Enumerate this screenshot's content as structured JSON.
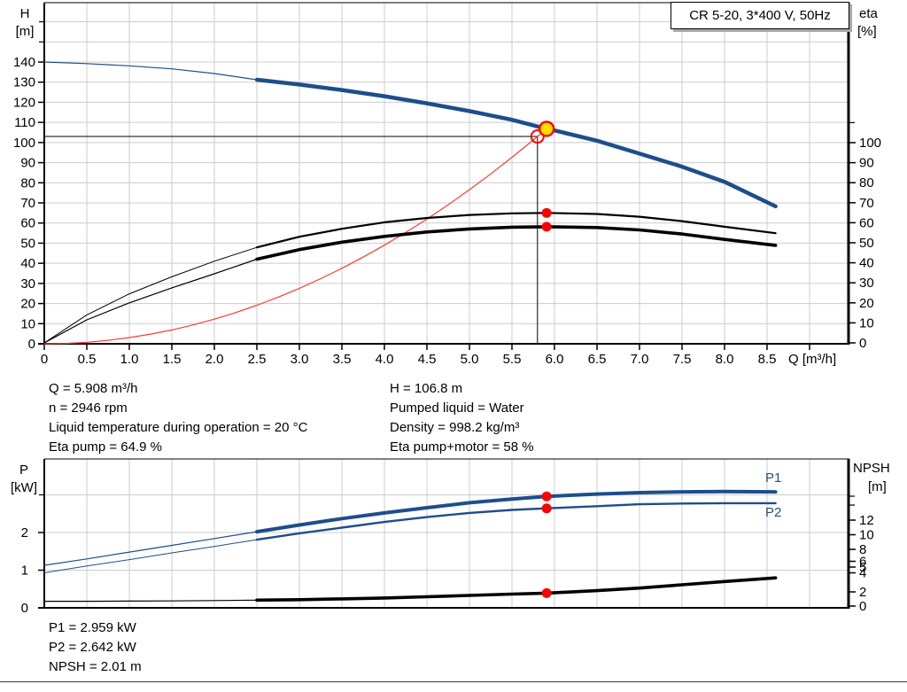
{
  "title_box": {
    "label": "CR 5-20, 3*400 V, 50Hz"
  },
  "info": {
    "left": [
      "Q = 5.908 m³/h",
      "n = 2946 rpm",
      "Liquid temperature during operation = 20 °C",
      "Eta pump = 64.9 %"
    ],
    "right": [
      "H = 106.8 m",
      "Pumped liquid = Water",
      "Density = 998.2 kg/m³",
      "Eta pump+motor = 58 %"
    ]
  },
  "results": [
    "P1 = 2.959 kW",
    "P2 = 2.642 kW",
    "NPSH = 2.01 m"
  ],
  "colors": {
    "curve_blue": "#1d4e8b",
    "curve_black": "#000000",
    "system_red": "#ff3b30",
    "marker_red": "#ff0000",
    "marker_yellow": "#ffdf00",
    "grid": "#cccccc"
  },
  "chart_data": [
    {
      "type": "line",
      "title": "CR 5-20, 3*400 V, 50Hz",
      "x_axis": {
        "label": "Q [m³/h]",
        "min": 0,
        "max": 9.47,
        "tick_step": 0.5,
        "tick_labels": [
          "0",
          "0.5",
          "1.0",
          "1.5",
          "2.0",
          "2.5",
          "3.0",
          "3.5",
          "4.0",
          "4.5",
          "5.0",
          "5.5",
          "6.0",
          "6.5",
          "7.0",
          "7.5",
          "8.0",
          "8.5"
        ]
      },
      "y_left": {
        "label_line1": "H",
        "label_line2": "[m]",
        "min": 0,
        "max": 140,
        "tick_labels": [
          "0",
          "10",
          "20",
          "30",
          "40",
          "50",
          "60",
          "70",
          "80",
          "90",
          "100",
          "110",
          "120",
          "130",
          "140"
        ]
      },
      "y_right": {
        "label_line1": "eta",
        "label_line2": "[%]",
        "min": 0,
        "max": 100,
        "tick_labels": [
          "0",
          "10",
          "20",
          "30",
          "40",
          "50",
          "60",
          "70",
          "80",
          "90",
          "100"
        ]
      },
      "series": [
        {
          "id": "system-curve",
          "name": "System curve",
          "axis": "H",
          "color": "#ff3b30",
          "split_q": 99,
          "points": [
            [
              0,
              0
            ],
            [
              0.25,
              0.19
            ],
            [
              0.5,
              0.77
            ],
            [
              0.75,
              1.72
            ],
            [
              1,
              3.06
            ],
            [
              1.25,
              4.79
            ],
            [
              1.5,
              6.89
            ],
            [
              1.75,
              9.38
            ],
            [
              2,
              12.25
            ],
            [
              2.25,
              15.5
            ],
            [
              2.5,
              19.14
            ],
            [
              2.75,
              23.16
            ],
            [
              3,
              27.56
            ],
            [
              3.25,
              32.35
            ],
            [
              3.5,
              37.51
            ],
            [
              3.75,
              43.06
            ],
            [
              4,
              48.99
            ],
            [
              4.25,
              55.31
            ],
            [
              4.5,
              62.0
            ],
            [
              4.75,
              69.08
            ],
            [
              5,
              76.56
            ],
            [
              5.25,
              84.41
            ],
            [
              5.5,
              92.64
            ],
            [
              5.75,
              101.26
            ],
            [
              5.908,
              106.8
            ]
          ]
        },
        {
          "id": "eta-pump-motor-curve",
          "name": "Eta pump+motor",
          "axis": "eta",
          "color": "#000000",
          "split_q": 2.5,
          "points": [
            [
              0,
              0
            ],
            [
              0.5,
              11.5
            ],
            [
              1,
              20
            ],
            [
              1.5,
              27.5
            ],
            [
              2,
              34.5
            ],
            [
              2.5,
              41.8
            ],
            [
              3,
              46.6
            ],
            [
              3.5,
              50.3
            ],
            [
              4,
              53.2
            ],
            [
              4.5,
              55.4
            ],
            [
              5,
              56.9
            ],
            [
              5.5,
              57.8
            ],
            [
              5.908,
              58
            ],
            [
              6.5,
              57.6
            ],
            [
              7,
              56.4
            ],
            [
              7.5,
              54.4
            ],
            [
              8,
              51.7
            ],
            [
              8.6,
              48.7
            ]
          ]
        },
        {
          "id": "eta-pump-curve",
          "name": "Eta pump",
          "axis": "eta",
          "color": "#000000",
          "split_q": 2.5,
          "points": [
            [
              0,
              0
            ],
            [
              0.5,
              14
            ],
            [
              1,
              24.5
            ],
            [
              1.5,
              33
            ],
            [
              2,
              40.8
            ],
            [
              2.5,
              47.7
            ],
            [
              3,
              53
            ],
            [
              3.5,
              57
            ],
            [
              4,
              60.2
            ],
            [
              4.5,
              62.4
            ],
            [
              5,
              63.9
            ],
            [
              5.5,
              64.7
            ],
            [
              5.908,
              64.9
            ],
            [
              6.5,
              64.4
            ],
            [
              7,
              63
            ],
            [
              7.5,
              60.8
            ],
            [
              8,
              58
            ],
            [
              8.6,
              54.8
            ]
          ]
        },
        {
          "id": "head-curve",
          "name": "CR 5-20 head curve",
          "axis": "H",
          "color": "#1d4e8b",
          "split_q": 2.5,
          "points": [
            [
              0,
              140
            ],
            [
              0.5,
              139.2
            ],
            [
              1,
              138.1
            ],
            [
              1.5,
              136.6
            ],
            [
              2,
              134.3
            ],
            [
              2.5,
              131.2
            ],
            [
              3,
              128.8
            ],
            [
              3.5,
              126.1
            ],
            [
              4,
              123
            ],
            [
              4.5,
              119.5
            ],
            [
              5,
              115.6
            ],
            [
              5.5,
              111.3
            ],
            [
              5.908,
              106.8
            ],
            [
              6,
              106
            ],
            [
              6.5,
              100.9
            ],
            [
              7,
              94.5
            ],
            [
              7.5,
              88
            ],
            [
              8,
              80.5
            ],
            [
              8.6,
              68.3
            ]
          ]
        }
      ],
      "markers": {
        "duty_point": {
          "q": 5.8,
          "H": 103
        },
        "operating_point": {
          "q": 5.908,
          "H": 106.8
        },
        "eta_dots": [
          {
            "q": 5.908,
            "eta": 64.9
          },
          {
            "q": 5.908,
            "eta": 58
          }
        ]
      }
    },
    {
      "type": "line",
      "x_axis": {
        "label": "",
        "min": 0,
        "max": 9.47,
        "tick_step": 0.5,
        "tick_labels": []
      },
      "y_left": {
        "label_line1": "P",
        "label_line2": "[kW]",
        "min": 0,
        "max": 4,
        "tick_labels": [
          "0",
          "1",
          "2"
        ]
      },
      "y_right": {
        "label_line1": "NPSH",
        "label_line2": "[m]",
        "min": 0,
        "max": 15,
        "tick_labels": [
          "12",
          "10",
          "8",
          "6",
          "5",
          "4",
          "2",
          "0"
        ]
      },
      "legend": [
        "P1",
        "P2"
      ],
      "series": [
        {
          "id": "p1-curve",
          "name": "P1",
          "axis": "P",
          "color": "#1d4e8b",
          "split_q": 2.5,
          "points": [
            [
              0,
              1.13
            ],
            [
              0.5,
              1.3
            ],
            [
              1,
              1.48
            ],
            [
              1.5,
              1.66
            ],
            [
              2,
              1.84
            ],
            [
              2.5,
              2.02
            ],
            [
              3,
              2.2
            ],
            [
              3.5,
              2.37
            ],
            [
              4,
              2.52
            ],
            [
              4.5,
              2.66
            ],
            [
              5,
              2.79
            ],
            [
              5.5,
              2.89
            ],
            [
              5.908,
              2.959
            ],
            [
              6.5,
              3.02
            ],
            [
              7,
              3.06
            ],
            [
              7.5,
              3.08
            ],
            [
              8,
              3.09
            ],
            [
              8.6,
              3.08
            ]
          ]
        },
        {
          "id": "p2-curve",
          "name": "P2",
          "axis": "P",
          "color": "#1d4e8b",
          "split_q": 2.5,
          "points": [
            [
              0,
              0.93
            ],
            [
              0.5,
              1.11
            ],
            [
              1,
              1.28
            ],
            [
              1.5,
              1.46
            ],
            [
              2,
              1.63
            ],
            [
              2.5,
              1.81
            ],
            [
              3,
              1.98
            ],
            [
              3.5,
              2.13
            ],
            [
              4,
              2.28
            ],
            [
              4.5,
              2.41
            ],
            [
              5,
              2.52
            ],
            [
              5.5,
              2.6
            ],
            [
              5.908,
              2.642
            ],
            [
              6.5,
              2.7
            ],
            [
              7,
              2.75
            ],
            [
              7.5,
              2.77
            ],
            [
              8,
              2.78
            ],
            [
              8.6,
              2.78
            ]
          ]
        },
        {
          "id": "npsh-curve",
          "name": "NPSH",
          "axis": "N",
          "color": "#000000",
          "split_q": 2.5,
          "points": [
            [
              0,
              0.9
            ],
            [
              0.5,
              0.9
            ],
            [
              1,
              0.92
            ],
            [
              1.5,
              0.95
            ],
            [
              2,
              1
            ],
            [
              2.5,
              1.05
            ],
            [
              3,
              1.12
            ],
            [
              3.5,
              1.22
            ],
            [
              4,
              1.35
            ],
            [
              4.5,
              1.52
            ],
            [
              5,
              1.7
            ],
            [
              5.5,
              1.88
            ],
            [
              5.908,
              2.01
            ],
            [
              6.5,
              2.35
            ],
            [
              7,
              2.7
            ],
            [
              7.5,
              3.15
            ],
            [
              8,
              3.6
            ],
            [
              8.6,
              4.1
            ]
          ]
        }
      ],
      "markers": {
        "dots": [
          {
            "q": 5.908,
            "axis": "P",
            "v": 2.959
          },
          {
            "q": 5.908,
            "axis": "P",
            "v": 2.642
          },
          {
            "q": 5.908,
            "axis": "N",
            "v": 2.01
          }
        ]
      }
    }
  ]
}
